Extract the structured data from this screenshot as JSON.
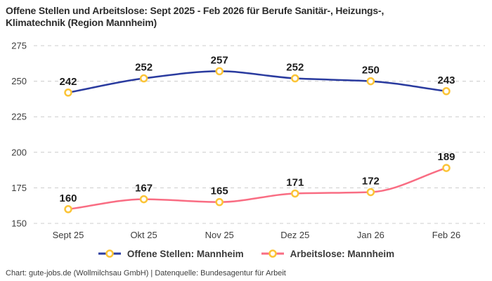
{
  "title": {
    "line1": "Offene Stellen und Arbeitslose: Sept 2025 - Feb 2026 für Berufe Sanitär-, Heizungs-,",
    "line2": "Klimatechnik (Region Mannheim)"
  },
  "chart_data": {
    "type": "line",
    "categories": [
      "Sept 25",
      "Okt 25",
      "Nov 25",
      "Dez 25",
      "Jan 26",
      "Feb 26"
    ],
    "series": [
      {
        "name": "Offene Stellen: Mannheim",
        "values": [
          242,
          252,
          257,
          252,
          250,
          243
        ],
        "color": "#2a3b9f"
      },
      {
        "name": "Arbeitslose: Mannheim",
        "values": [
          160,
          167,
          165,
          171,
          172,
          189
        ],
        "color": "#f96d83"
      }
    ],
    "y_ticks": [
      150,
      175,
      200,
      225,
      250,
      275
    ],
    "ylim": [
      150,
      275
    ],
    "curve": "monotone",
    "grid": "horizontal-dashed",
    "grid_color": "#cccccc",
    "marker_ring_color": "#fbc437",
    "marker_fill_color": "#ffffff",
    "value_label_color": "#1c1c1c",
    "axis_label_color": "#3d3d3d",
    "legend_position": "bottom",
    "value_labels": true
  },
  "footer": {
    "text": "Chart: gute-jobs.de (Wollmilchsau GmbH) | Datenquelle: Bundesagentur für Arbeit"
  }
}
